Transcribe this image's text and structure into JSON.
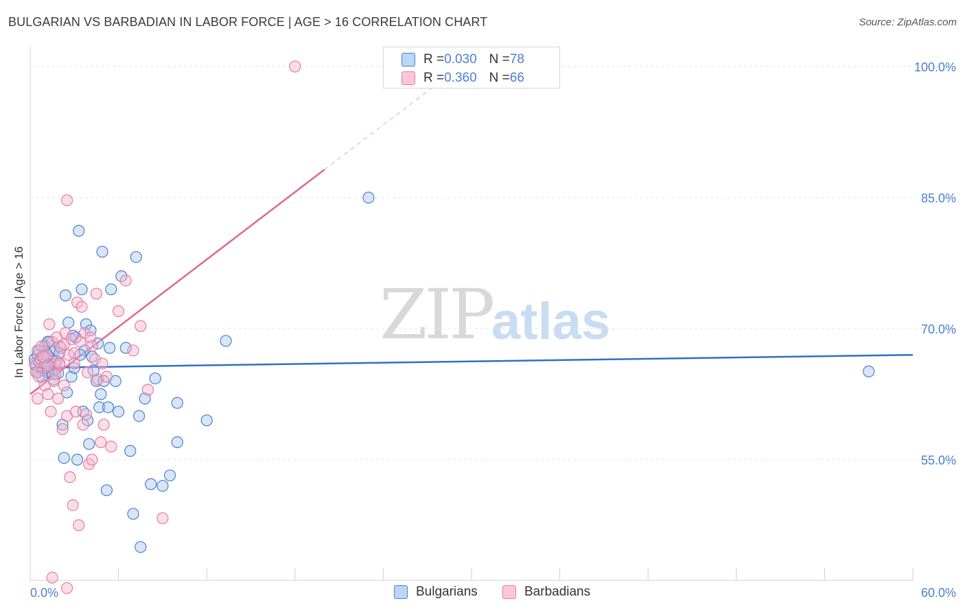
{
  "header": {
    "title": "BULGARIAN VS BARBADIAN IN LABOR FORCE | AGE > 16 CORRELATION CHART",
    "source": "Source: ZipAtlas.com"
  },
  "watermark": {
    "part1": "ZIP",
    "part2": "atlas"
  },
  "legend": {
    "rows": [
      {
        "r_label": "R = ",
        "r_value": "0.030",
        "n_label": "N = ",
        "n_value": "78"
      },
      {
        "r_label": "R = ",
        "r_value": "0.360",
        "n_label": "N = ",
        "n_value": "66"
      }
    ]
  },
  "bottom_legend": {
    "items": [
      "Bulgarians",
      "Barbadians"
    ]
  },
  "colors": {
    "blue": "#4a7fcf",
    "blue_fill": "#a9c8f0",
    "blue_line": "#2d6fcb",
    "pink": "#e87a9f",
    "pink_fill": "#f5b8cb",
    "pink_line": "#e06592",
    "grid": "#e4e4e4"
  },
  "chart_data": {
    "type": "scatter",
    "title": "BULGARIAN VS BARBADIAN IN LABOR FORCE | AGE > 16 CORRELATION CHART",
    "xlabel": "",
    "ylabel": "In Labor Force | Age > 16",
    "xlim": [
      0,
      60
    ],
    "ylim": [
      41,
      102
    ],
    "x_tick_labels": [
      "0.0%",
      "60.0%"
    ],
    "y_ticks": [
      55,
      70,
      85,
      100
    ],
    "y_tick_labels": [
      "55.0%",
      "70.0%",
      "85.0%",
      "100.0%"
    ],
    "grid": "horizontal dashed",
    "legend_position": "top-center",
    "series": [
      {
        "name": "Bulgarians",
        "color": "#4a7fcf",
        "trend": {
          "x": [
            0,
            60
          ],
          "y": [
            65.5,
            67.0
          ]
        },
        "points": [
          [
            0.3,
            66.5
          ],
          [
            0.4,
            65.8
          ],
          [
            0.5,
            67.0
          ],
          [
            0.6,
            66.2
          ],
          [
            0.7,
            65.5
          ],
          [
            0.8,
            66.8
          ],
          [
            0.9,
            65.2
          ],
          [
            1.0,
            66.0
          ],
          [
            1.1,
            67.3
          ],
          [
            1.2,
            65.0
          ],
          [
            1.3,
            68.5
          ],
          [
            1.4,
            66.6
          ],
          [
            1.5,
            64.8
          ],
          [
            1.6,
            67.5
          ],
          [
            1.7,
            65.9
          ],
          [
            1.8,
            66.3
          ],
          [
            0.5,
            65.0
          ],
          [
            0.6,
            67.5
          ],
          [
            0.8,
            64.5
          ],
          [
            1.0,
            68.0
          ],
          [
            1.2,
            66.9
          ],
          [
            1.4,
            65.6
          ],
          [
            1.9,
            64.9
          ],
          [
            2.0,
            67.2
          ],
          [
            2.2,
            59.0
          ],
          [
            2.3,
            55.2
          ],
          [
            2.4,
            73.8
          ],
          [
            2.5,
            62.7
          ],
          [
            2.6,
            70.7
          ],
          [
            2.8,
            64.5
          ],
          [
            3.0,
            65.5
          ],
          [
            3.1,
            69.0
          ],
          [
            3.2,
            55.0
          ],
          [
            3.3,
            81.2
          ],
          [
            3.5,
            74.5
          ],
          [
            3.6,
            60.5
          ],
          [
            3.7,
            67.5
          ],
          [
            3.8,
            70.5
          ],
          [
            3.9,
            59.5
          ],
          [
            4.0,
            56.8
          ],
          [
            4.1,
            69.8
          ],
          [
            4.2,
            66.8
          ],
          [
            4.3,
            65.2
          ],
          [
            4.5,
            64.0
          ],
          [
            4.6,
            68.3
          ],
          [
            4.7,
            61.0
          ],
          [
            4.8,
            62.5
          ],
          [
            4.9,
            78.8
          ],
          [
            5.0,
            64.0
          ],
          [
            5.2,
            51.5
          ],
          [
            5.3,
            61.0
          ],
          [
            5.4,
            67.8
          ],
          [
            5.5,
            74.5
          ],
          [
            5.8,
            64.0
          ],
          [
            6.0,
            60.5
          ],
          [
            6.2,
            76.0
          ],
          [
            6.5,
            67.8
          ],
          [
            6.8,
            56.0
          ],
          [
            7.0,
            48.8
          ],
          [
            7.2,
            78.2
          ],
          [
            7.4,
            60.0
          ],
          [
            7.5,
            45.0
          ],
          [
            7.8,
            62.0
          ],
          [
            8.2,
            52.2
          ],
          [
            8.5,
            64.3
          ],
          [
            9.0,
            52.0
          ],
          [
            9.5,
            53.2
          ],
          [
            10.0,
            61.5
          ],
          [
            1.2,
            68.5
          ],
          [
            2.0,
            68.0
          ],
          [
            2.9,
            69.2
          ],
          [
            3.4,
            67.0
          ],
          [
            10.0,
            57.0
          ],
          [
            12.0,
            59.5
          ],
          [
            13.3,
            68.6
          ],
          [
            23.0,
            85.0
          ],
          [
            57.0,
            65.1
          ],
          [
            1.6,
            64.2
          ]
        ]
      },
      {
        "name": "Barbadians",
        "color": "#e87a9f",
        "trend": {
          "x": [
            0,
            20
          ],
          "y": [
            62.5,
            88.2
          ]
        },
        "trend_dashed": {
          "x": [
            20,
            30
          ],
          "y": [
            88.2,
            101.0
          ]
        },
        "points": [
          [
            0.3,
            66.0
          ],
          [
            0.4,
            65.0
          ],
          [
            0.5,
            67.5
          ],
          [
            0.6,
            64.5
          ],
          [
            0.7,
            66.5
          ],
          [
            0.8,
            68.0
          ],
          [
            0.9,
            65.5
          ],
          [
            1.0,
            63.5
          ],
          [
            1.1,
            67.0
          ],
          [
            1.2,
            62.5
          ],
          [
            1.3,
            70.5
          ],
          [
            1.4,
            60.5
          ],
          [
            1.5,
            68.5
          ],
          [
            1.6,
            64.0
          ],
          [
            1.7,
            66.2
          ],
          [
            1.8,
            69.0
          ],
          [
            1.9,
            62.0
          ],
          [
            2.0,
            65.8
          ],
          [
            2.1,
            67.8
          ],
          [
            2.2,
            58.5
          ],
          [
            2.3,
            63.5
          ],
          [
            2.4,
            69.5
          ],
          [
            2.5,
            60.0
          ],
          [
            2.6,
            67.0
          ],
          [
            2.7,
            53.0
          ],
          [
            2.8,
            68.8
          ],
          [
            2.9,
            49.8
          ],
          [
            3.0,
            66.0
          ],
          [
            3.1,
            60.5
          ],
          [
            3.2,
            73.0
          ],
          [
            3.3,
            47.5
          ],
          [
            3.4,
            68.5
          ],
          [
            3.5,
            72.5
          ],
          [
            3.6,
            59.0
          ],
          [
            3.7,
            69.5
          ],
          [
            3.8,
            60.2
          ],
          [
            3.9,
            65.0
          ],
          [
            4.0,
            54.5
          ],
          [
            4.1,
            69.0
          ],
          [
            4.2,
            55.0
          ],
          [
            4.4,
            66.5
          ],
          [
            4.5,
            74.0
          ],
          [
            4.6,
            64.2
          ],
          [
            4.8,
            57.0
          ],
          [
            5.0,
            59.0
          ],
          [
            5.2,
            64.5
          ],
          [
            5.5,
            56.5
          ],
          [
            6.0,
            72.0
          ],
          [
            6.5,
            75.5
          ],
          [
            7.0,
            67.5
          ],
          [
            7.5,
            70.3
          ],
          [
            8.0,
            63.0
          ],
          [
            9.0,
            48.3
          ],
          [
            1.5,
            41.5
          ],
          [
            2.5,
            40.3
          ],
          [
            2.5,
            84.7
          ],
          [
            18.0,
            100.0
          ],
          [
            0.5,
            62.0
          ],
          [
            0.9,
            66.8
          ],
          [
            1.7,
            64.8
          ],
          [
            2.3,
            68.2
          ],
          [
            3.0,
            67.2
          ],
          [
            4.2,
            68.0
          ],
          [
            4.9,
            66.0
          ],
          [
            1.2,
            65.8
          ],
          [
            2.0,
            66.0
          ]
        ]
      }
    ]
  }
}
